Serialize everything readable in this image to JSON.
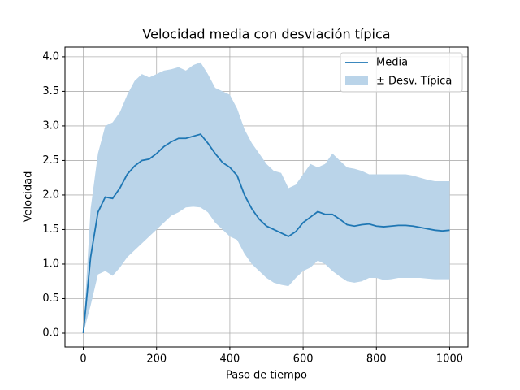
{
  "chart_data": {
    "type": "line",
    "title": "Velocidad media con desviación típica",
    "xlabel": "Paso de tiempo",
    "ylabel": "Velocidad",
    "x": [
      0,
      20,
      40,
      60,
      80,
      100,
      120,
      140,
      160,
      180,
      200,
      220,
      240,
      260,
      280,
      300,
      320,
      340,
      360,
      380,
      400,
      420,
      440,
      460,
      480,
      500,
      520,
      540,
      560,
      580,
      600,
      620,
      640,
      660,
      680,
      700,
      720,
      740,
      760,
      780,
      800,
      820,
      840,
      860,
      880,
      900,
      920,
      940,
      960,
      980,
      1000
    ],
    "series": [
      {
        "name": "Media",
        "color": "#1f77b4",
        "values": [
          0,
          1.1,
          1.75,
          1.97,
          1.95,
          2.1,
          2.3,
          2.42,
          2.5,
          2.52,
          2.6,
          2.7,
          2.77,
          2.82,
          2.82,
          2.85,
          2.88,
          2.75,
          2.6,
          2.47,
          2.4,
          2.28,
          2.0,
          1.8,
          1.65,
          1.55,
          1.5,
          1.45,
          1.4,
          1.47,
          1.6,
          1.68,
          1.76,
          1.72,
          1.72,
          1.65,
          1.57,
          1.55,
          1.57,
          1.58,
          1.55,
          1.54,
          1.55,
          1.56,
          1.56,
          1.55,
          1.53,
          1.51,
          1.49,
          1.48,
          1.49
        ]
      }
    ],
    "band": {
      "name": "± Desv. Típica",
      "color": "#bad4e9",
      "upper": [
        0,
        1.8,
        2.6,
        3.0,
        3.05,
        3.2,
        3.45,
        3.65,
        3.75,
        3.7,
        3.75,
        3.8,
        3.82,
        3.85,
        3.8,
        3.88,
        3.92,
        3.75,
        3.55,
        3.5,
        3.45,
        3.25,
        2.95,
        2.75,
        2.6,
        2.45,
        2.35,
        2.32,
        2.1,
        2.15,
        2.3,
        2.45,
        2.4,
        2.45,
        2.6,
        2.5,
        2.4,
        2.38,
        2.35,
        2.3,
        2.3,
        2.3,
        2.3,
        2.3,
        2.3,
        2.28,
        2.25,
        2.22,
        2.2,
        2.2,
        2.2
      ],
      "lower": [
        0,
        0.4,
        0.85,
        0.9,
        0.83,
        0.95,
        1.1,
        1.2,
        1.3,
        1.4,
        1.5,
        1.6,
        1.7,
        1.75,
        1.82,
        1.83,
        1.82,
        1.75,
        1.6,
        1.5,
        1.4,
        1.35,
        1.15,
        1.0,
        0.9,
        0.8,
        0.73,
        0.7,
        0.68,
        0.8,
        0.9,
        0.95,
        1.05,
        1.0,
        0.9,
        0.82,
        0.75,
        0.73,
        0.75,
        0.8,
        0.8,
        0.77,
        0.78,
        0.8,
        0.8,
        0.8,
        0.8,
        0.79,
        0.78,
        0.78,
        0.78
      ]
    },
    "xlim": [
      -50,
      1050
    ],
    "ylim": [
      -0.2,
      4.14
    ],
    "xticks": [
      0,
      200,
      400,
      600,
      800,
      1000
    ],
    "yticks": [
      {
        "value": 0,
        "label": "0.0"
      },
      0.5,
      {
        "value": 1,
        "label": "1.0"
      },
      1.5,
      {
        "value": 2,
        "label": "2.0"
      },
      2.5,
      {
        "value": 3,
        "label": "3.0"
      },
      3.5,
      {
        "value": 4,
        "label": "4.0"
      }
    ],
    "grid": true,
    "legend": "upper right"
  }
}
